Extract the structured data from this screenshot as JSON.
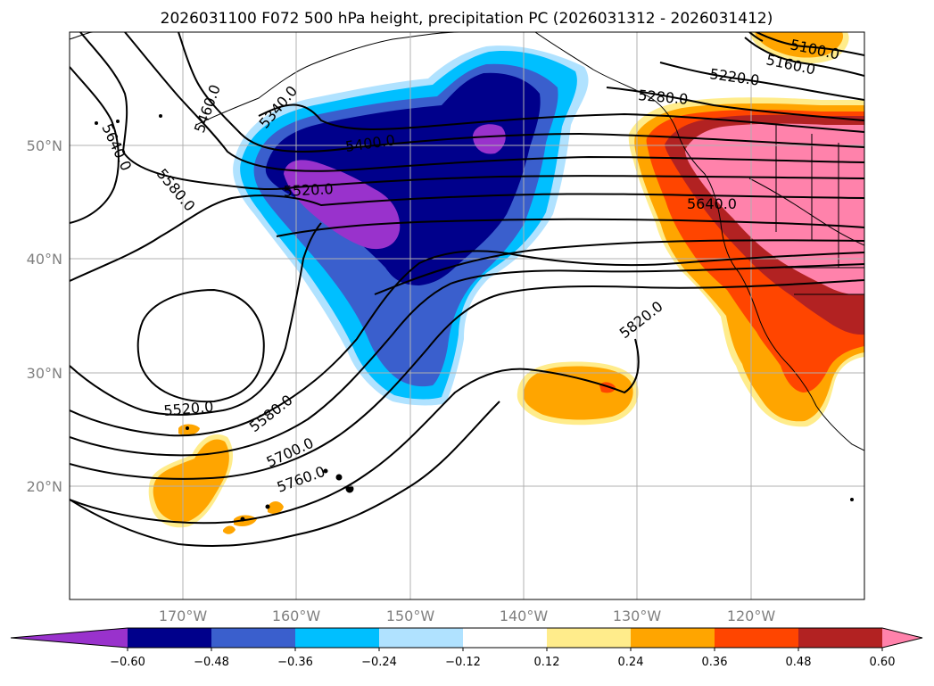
{
  "title": "2026031100 F072 500 hPa height, precipitation PC (2026031312 - 2026031412)",
  "map": {
    "lon_range": [
      -180,
      -110
    ],
    "lat_range": [
      10,
      60
    ],
    "gridlines": true,
    "lat_labels": [
      "50°N",
      "40°N",
      "30°N",
      "20°N"
    ],
    "lon_labels": [
      "170°W",
      "160°W",
      "150°W",
      "140°W",
      "130°W",
      "120°W"
    ]
  },
  "contour_labels": [
    "5100.0",
    "5160.0",
    "5220.0",
    "5280.0",
    "5340.0",
    "5400.0",
    "5460.0",
    "5520.0",
    "5520.0",
    "5580.0",
    "5580.0",
    "5640.0",
    "5640.0",
    "5700.0",
    "5760.0",
    "5820.0"
  ],
  "colorbar": {
    "extend": "both",
    "ticks": [
      "−0.60",
      "−0.48",
      "−0.36",
      "−0.24",
      "−0.12",
      "0.12",
      "0.24",
      "0.36",
      "0.48",
      "0.60"
    ],
    "colors": [
      "#9932cc",
      "#00008b",
      "#3a5fcd",
      "#00bfff",
      "#b0e2ff",
      "#ffffff",
      "#ffec8b",
      "#ffa500",
      "#ff4500",
      "#b22222",
      "#ff82ab"
    ]
  }
}
